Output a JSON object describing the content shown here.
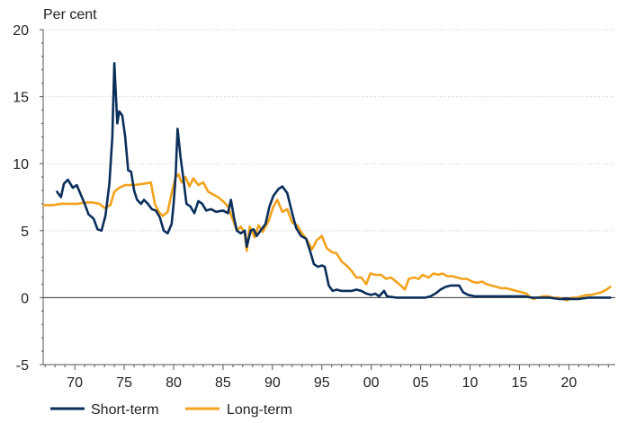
{
  "chart_data": {
    "type": "line",
    "ylabel": "Per cent",
    "ylim": [
      -5,
      20
    ],
    "xlim": [
      1966.8,
      2024.7
    ],
    "yticks": [
      20,
      15,
      10,
      5,
      0,
      -5
    ],
    "xticks": [
      {
        "year": 1970,
        "label": "70"
      },
      {
        "year": 1975,
        "label": "75"
      },
      {
        "year": 1980,
        "label": "80"
      },
      {
        "year": 1985,
        "label": "85"
      },
      {
        "year": 1990,
        "label": "90"
      },
      {
        "year": 1995,
        "label": "95"
      },
      {
        "year": 2000,
        "label": "00"
      },
      {
        "year": 2005,
        "label": "05"
      },
      {
        "year": 2010,
        "label": "10"
      },
      {
        "year": 2015,
        "label": "15"
      },
      {
        "year": 2020,
        "label": "20"
      }
    ],
    "grid": true,
    "legend_position": "bottom-left",
    "series": [
      {
        "name": "Short-term",
        "color": "#0b2f5b",
        "points": [
          [
            1968.2,
            7.9
          ],
          [
            1968.6,
            7.5
          ],
          [
            1968.9,
            8.5
          ],
          [
            1969.3,
            8.8
          ],
          [
            1969.8,
            8.2
          ],
          [
            1970.2,
            8.4
          ],
          [
            1970.6,
            7.7
          ],
          [
            1971.0,
            7.0
          ],
          [
            1971.4,
            6.2
          ],
          [
            1971.9,
            5.9
          ],
          [
            1972.3,
            5.1
          ],
          [
            1972.7,
            5.0
          ],
          [
            1973.1,
            6.1
          ],
          [
            1973.5,
            8.5
          ],
          [
            1973.8,
            12.0
          ],
          [
            1974.0,
            17.5
          ],
          [
            1974.3,
            13.0
          ],
          [
            1974.5,
            13.9
          ],
          [
            1974.8,
            13.6
          ],
          [
            1975.1,
            12.0
          ],
          [
            1975.4,
            9.5
          ],
          [
            1975.7,
            9.4
          ],
          [
            1976.0,
            8.0
          ],
          [
            1976.3,
            7.3
          ],
          [
            1976.7,
            7.0
          ],
          [
            1977.0,
            7.3
          ],
          [
            1977.4,
            7.0
          ],
          [
            1977.8,
            6.6
          ],
          [
            1978.2,
            6.5
          ],
          [
            1978.6,
            6.0
          ],
          [
            1979.0,
            5.0
          ],
          [
            1979.4,
            4.8
          ],
          [
            1979.8,
            5.5
          ],
          [
            1980.0,
            7.0
          ],
          [
            1980.2,
            9.0
          ],
          [
            1980.4,
            12.6
          ],
          [
            1980.7,
            10.5
          ],
          [
            1981.0,
            8.8
          ],
          [
            1981.3,
            7.0
          ],
          [
            1981.7,
            6.8
          ],
          [
            1982.1,
            6.3
          ],
          [
            1982.5,
            7.2
          ],
          [
            1982.9,
            7.0
          ],
          [
            1983.3,
            6.5
          ],
          [
            1983.8,
            6.6
          ],
          [
            1984.3,
            6.4
          ],
          [
            1985.0,
            6.5
          ],
          [
            1985.5,
            6.3
          ],
          [
            1985.8,
            7.3
          ],
          [
            1986.1,
            6.0
          ],
          [
            1986.4,
            5.0
          ],
          [
            1986.8,
            4.8
          ],
          [
            1987.2,
            5.0
          ],
          [
            1987.4,
            3.8
          ],
          [
            1987.8,
            5.0
          ],
          [
            1988.1,
            5.1
          ],
          [
            1988.4,
            4.6
          ],
          [
            1988.8,
            5.0
          ],
          [
            1989.3,
            5.5
          ],
          [
            1989.7,
            6.8
          ],
          [
            1990.1,
            7.6
          ],
          [
            1990.6,
            8.1
          ],
          [
            1991.0,
            8.3
          ],
          [
            1991.5,
            7.8
          ],
          [
            1992.0,
            6.3
          ],
          [
            1992.4,
            5.2
          ],
          [
            1992.9,
            4.6
          ],
          [
            1993.4,
            4.4
          ],
          [
            1993.8,
            3.5
          ],
          [
            1994.2,
            2.5
          ],
          [
            1994.6,
            2.3
          ],
          [
            1995.0,
            2.4
          ],
          [
            1995.3,
            2.3
          ],
          [
            1995.7,
            0.9
          ],
          [
            1996.1,
            0.5
          ],
          [
            1996.5,
            0.6
          ],
          [
            1997.0,
            0.5
          ],
          [
            1997.5,
            0.5
          ],
          [
            1998.0,
            0.5
          ],
          [
            1998.5,
            0.6
          ],
          [
            1999.0,
            0.5
          ],
          [
            1999.5,
            0.3
          ],
          [
            2000.0,
            0.2
          ],
          [
            2000.4,
            0.3
          ],
          [
            2000.8,
            0.1
          ],
          [
            2001.3,
            0.5
          ],
          [
            2001.6,
            0.1
          ],
          [
            2002.5,
            0.0
          ],
          [
            2003.5,
            0.0
          ],
          [
            2004.5,
            0.0
          ],
          [
            2005.5,
            0.0
          ],
          [
            2006.0,
            0.1
          ],
          [
            2006.5,
            0.3
          ],
          [
            2007.0,
            0.6
          ],
          [
            2007.5,
            0.8
          ],
          [
            2008.0,
            0.9
          ],
          [
            2008.5,
            0.9
          ],
          [
            2008.9,
            0.9
          ],
          [
            2009.3,
            0.4
          ],
          [
            2009.8,
            0.2
          ],
          [
            2010.5,
            0.1
          ],
          [
            2011.5,
            0.1
          ],
          [
            2012.5,
            0.1
          ],
          [
            2013.5,
            0.1
          ],
          [
            2014.5,
            0.1
          ],
          [
            2015.5,
            0.1
          ],
          [
            2016.2,
            0.0
          ],
          [
            2017.0,
            0.0
          ],
          [
            2018.0,
            0.0
          ],
          [
            2019.0,
            -0.1
          ],
          [
            2020.0,
            -0.1
          ],
          [
            2021.0,
            -0.1
          ],
          [
            2022.0,
            0.0
          ],
          [
            2023.0,
            0.0
          ],
          [
            2024.2,
            0.0
          ]
        ]
      },
      {
        "name": "Long-term",
        "color": "#f3a21c",
        "points": [
          [
            1966.9,
            6.9
          ],
          [
            1967.8,
            6.9
          ],
          [
            1968.6,
            7.0
          ],
          [
            1969.5,
            7.0
          ],
          [
            1970.3,
            7.0
          ],
          [
            1971.0,
            7.1
          ],
          [
            1971.8,
            7.1
          ],
          [
            1972.5,
            7.0
          ],
          [
            1973.0,
            6.7
          ],
          [
            1973.6,
            6.9
          ],
          [
            1974.0,
            7.9
          ],
          [
            1974.5,
            8.2
          ],
          [
            1975.1,
            8.4
          ],
          [
            1976.0,
            8.4
          ],
          [
            1977.0,
            8.5
          ],
          [
            1977.7,
            8.6
          ],
          [
            1978.1,
            7.0
          ],
          [
            1978.5,
            6.4
          ],
          [
            1978.9,
            6.1
          ],
          [
            1979.4,
            6.4
          ],
          [
            1979.8,
            7.8
          ],
          [
            1980.2,
            9.0
          ],
          [
            1980.5,
            9.2
          ],
          [
            1980.8,
            8.6
          ],
          [
            1981.2,
            9.0
          ],
          [
            1981.6,
            8.3
          ],
          [
            1982.0,
            8.9
          ],
          [
            1982.5,
            8.4
          ],
          [
            1983.0,
            8.6
          ],
          [
            1983.5,
            7.9
          ],
          [
            1984.0,
            7.7
          ],
          [
            1984.5,
            7.5
          ],
          [
            1985.0,
            7.2
          ],
          [
            1985.5,
            6.8
          ],
          [
            1986.0,
            5.8
          ],
          [
            1986.4,
            5.0
          ],
          [
            1986.8,
            5.3
          ],
          [
            1987.2,
            4.8
          ],
          [
            1987.4,
            3.5
          ],
          [
            1987.7,
            5.3
          ],
          [
            1988.2,
            4.5
          ],
          [
            1988.6,
            5.4
          ],
          [
            1989.0,
            4.9
          ],
          [
            1989.6,
            5.7
          ],
          [
            1990.1,
            6.8
          ],
          [
            1990.5,
            7.3
          ],
          [
            1991.0,
            6.4
          ],
          [
            1991.5,
            6.6
          ],
          [
            1992.0,
            5.6
          ],
          [
            1992.5,
            5.4
          ],
          [
            1993.0,
            4.8
          ],
          [
            1993.5,
            4.3
          ],
          [
            1994.0,
            3.6
          ],
          [
            1994.5,
            4.3
          ],
          [
            1995.0,
            4.6
          ],
          [
            1995.5,
            3.7
          ],
          [
            1996.0,
            3.4
          ],
          [
            1996.5,
            3.3
          ],
          [
            1997.0,
            2.7
          ],
          [
            1997.5,
            2.4
          ],
          [
            1998.0,
            2.0
          ],
          [
            1998.5,
            1.5
          ],
          [
            1999.0,
            1.5
          ],
          [
            1999.5,
            1.0
          ],
          [
            1999.9,
            1.8
          ],
          [
            2000.4,
            1.7
          ],
          [
            2001.0,
            1.7
          ],
          [
            2001.5,
            1.4
          ],
          [
            2002.0,
            1.5
          ],
          [
            2002.5,
            1.2
          ],
          [
            2003.0,
            0.9
          ],
          [
            2003.4,
            0.6
          ],
          [
            2003.8,
            1.4
          ],
          [
            2004.3,
            1.5
          ],
          [
            2004.8,
            1.4
          ],
          [
            2005.2,
            1.7
          ],
          [
            2005.8,
            1.5
          ],
          [
            2006.3,
            1.8
          ],
          [
            2006.8,
            1.7
          ],
          [
            2007.2,
            1.8
          ],
          [
            2007.7,
            1.6
          ],
          [
            2008.2,
            1.6
          ],
          [
            2008.7,
            1.5
          ],
          [
            2009.2,
            1.4
          ],
          [
            2009.7,
            1.4
          ],
          [
            2010.2,
            1.2
          ],
          [
            2010.7,
            1.1
          ],
          [
            2011.2,
            1.2
          ],
          [
            2011.7,
            1.0
          ],
          [
            2012.2,
            0.9
          ],
          [
            2012.7,
            0.8
          ],
          [
            2013.2,
            0.7
          ],
          [
            2013.7,
            0.7
          ],
          [
            2014.2,
            0.6
          ],
          [
            2014.7,
            0.5
          ],
          [
            2015.2,
            0.4
          ],
          [
            2015.7,
            0.3
          ],
          [
            2016.0,
            0.1
          ],
          [
            2016.4,
            -0.1
          ],
          [
            2016.9,
            0.0
          ],
          [
            2017.4,
            0.1
          ],
          [
            2017.9,
            0.1
          ],
          [
            2018.4,
            0.0
          ],
          [
            2018.9,
            0.0
          ],
          [
            2019.4,
            -0.1
          ],
          [
            2019.8,
            -0.2
          ],
          [
            2020.3,
            0.0
          ],
          [
            2020.8,
            0.0
          ],
          [
            2021.3,
            0.1
          ],
          [
            2021.8,
            0.2
          ],
          [
            2022.3,
            0.2
          ],
          [
            2022.8,
            0.3
          ],
          [
            2023.3,
            0.4
          ],
          [
            2023.8,
            0.6
          ],
          [
            2024.2,
            0.8
          ]
        ]
      }
    ]
  }
}
